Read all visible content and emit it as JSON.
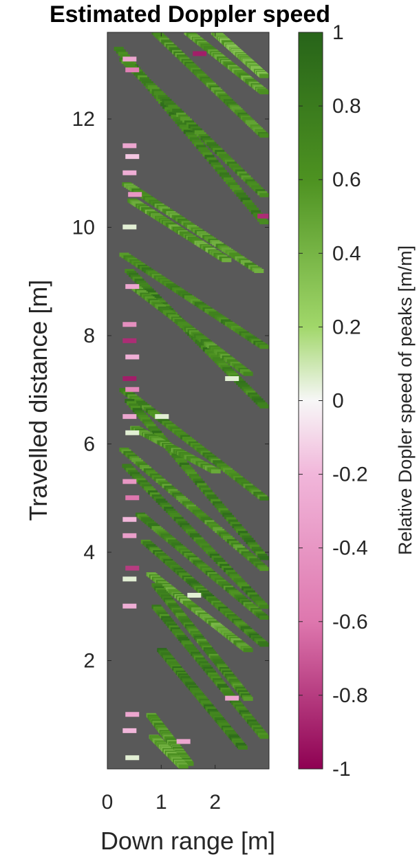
{
  "chart_data": {
    "type": "heatmap",
    "title": "Estimated Doppler speed",
    "xlabel": "Down range [m]",
    "ylabel": "Travelled distance [m]",
    "colorbar_label": "Relative Dopler speed of peaks [m/m]",
    "xlim": [
      0,
      3
    ],
    "ylim": [
      0,
      13.6
    ],
    "clim": [
      -1,
      1
    ],
    "x_ticks": [
      0,
      1,
      2
    ],
    "x_tick_labels": [
      "0",
      "1",
      "2"
    ],
    "y_ticks": [
      2,
      4,
      6,
      8,
      10,
      12
    ],
    "y_tick_labels": [
      "2",
      "4",
      "6",
      "8",
      "10",
      "12"
    ],
    "colorbar_ticks": [
      1,
      0.8,
      0.6,
      0.4,
      0.2,
      0,
      -0.2,
      -0.4,
      -0.6,
      -0.8,
      -1
    ],
    "colorbar_tick_labels": [
      "1",
      "0.8",
      "0.6",
      "0.4",
      "0.2",
      "0",
      "-0.2",
      "-0.4",
      "-0.6",
      "-0.8",
      "-1"
    ],
    "colormap": "PiYG",
    "background_color": "#595959",
    "grid": false,
    "streaks": [
      {
        "x0": 0.2,
        "y0": 13.3,
        "x1": 2.9,
        "y1": 10.1,
        "v": 0.75
      },
      {
        "x0": 0.3,
        "y0": 13.1,
        "x1": 2.9,
        "y1": 10.6,
        "v": 0.7
      },
      {
        "x0": 0.9,
        "y0": 13.6,
        "x1": 2.9,
        "y1": 11.7,
        "v": 0.65
      },
      {
        "x0": 1.5,
        "y0": 13.6,
        "x1": 2.9,
        "y1": 12.5,
        "v": 0.55
      },
      {
        "x0": 2.0,
        "y0": 13.6,
        "x1": 2.9,
        "y1": 12.8,
        "v": 0.45
      },
      {
        "x0": 0.35,
        "y0": 10.8,
        "x1": 2.8,
        "y1": 9.2,
        "v": 0.6
      },
      {
        "x0": 0.45,
        "y0": 10.5,
        "x1": 2.2,
        "y1": 9.4,
        "v": 0.55
      },
      {
        "x0": 0.3,
        "y0": 9.5,
        "x1": 2.9,
        "y1": 7.8,
        "v": 0.7
      },
      {
        "x0": 0.4,
        "y0": 9.2,
        "x1": 2.9,
        "y1": 6.7,
        "v": 0.75
      },
      {
        "x0": 0.5,
        "y0": 8.9,
        "x1": 2.6,
        "y1": 7.3,
        "v": 0.65
      },
      {
        "x0": 0.3,
        "y0": 7.0,
        "x1": 2.9,
        "y1": 5.0,
        "v": 0.7
      },
      {
        "x0": 0.4,
        "y0": 6.8,
        "x1": 2.9,
        "y1": 3.9,
        "v": 0.75
      },
      {
        "x0": 0.5,
        "y0": 6.3,
        "x1": 2.0,
        "y1": 5.5,
        "v": 0.6
      },
      {
        "x0": 0.3,
        "y0": 5.9,
        "x1": 2.9,
        "y1": 3.7,
        "v": 0.65
      },
      {
        "x0": 0.35,
        "y0": 5.6,
        "x1": 2.9,
        "y1": 3.0,
        "v": 0.75
      },
      {
        "x0": 0.6,
        "y0": 4.7,
        "x1": 2.9,
        "y1": 2.8,
        "v": 0.7
      },
      {
        "x0": 0.7,
        "y0": 4.2,
        "x1": 2.9,
        "y1": 2.3,
        "v": 0.75
      },
      {
        "x0": 0.8,
        "y0": 3.6,
        "x1": 2.6,
        "y1": 2.2,
        "v": 0.55
      },
      {
        "x0": 0.9,
        "y0": 3.4,
        "x1": 2.6,
        "y1": 1.3,
        "v": 0.7
      },
      {
        "x0": 0.9,
        "y0": 3.0,
        "x1": 2.9,
        "y1": 0.6,
        "v": 0.75
      },
      {
        "x0": 1.0,
        "y0": 2.2,
        "x1": 2.5,
        "y1": 0.4,
        "v": 0.8
      },
      {
        "x0": 0.8,
        "y0": 1.0,
        "x1": 1.5,
        "y1": 0.1,
        "v": 0.6
      },
      {
        "x0": 0.85,
        "y0": 0.6,
        "x1": 1.4,
        "y1": 0.05,
        "v": 0.5
      }
    ],
    "patches": [
      {
        "x": 0.4,
        "y": 13.1,
        "v": -0.3
      },
      {
        "x": 0.45,
        "y": 12.9,
        "v": -0.55
      },
      {
        "x": 0.4,
        "y": 11.5,
        "v": -0.3
      },
      {
        "x": 0.45,
        "y": 11.3,
        "v": -0.15
      },
      {
        "x": 0.4,
        "y": 11.0,
        "v": -0.25
      },
      {
        "x": 0.5,
        "y": 10.6,
        "v": -0.4
      },
      {
        "x": 0.4,
        "y": 10.0,
        "v": 0.05
      },
      {
        "x": 0.45,
        "y": 8.9,
        "v": -0.3
      },
      {
        "x": 0.4,
        "y": 8.2,
        "v": -0.45
      },
      {
        "x": 0.4,
        "y": 7.9,
        "v": -0.85
      },
      {
        "x": 0.45,
        "y": 7.6,
        "v": -0.25
      },
      {
        "x": 0.4,
        "y": 7.2,
        "v": -0.9
      },
      {
        "x": 0.45,
        "y": 7.0,
        "v": -0.5
      },
      {
        "x": 0.4,
        "y": 6.5,
        "v": -0.3
      },
      {
        "x": 0.45,
        "y": 6.2,
        "v": 0.05
      },
      {
        "x": 0.4,
        "y": 5.3,
        "v": -0.4
      },
      {
        "x": 0.45,
        "y": 5.0,
        "v": -0.6
      },
      {
        "x": 0.4,
        "y": 4.6,
        "v": -0.2
      },
      {
        "x": 0.4,
        "y": 4.3,
        "v": -0.35
      },
      {
        "x": 0.45,
        "y": 3.7,
        "v": -0.8
      },
      {
        "x": 0.4,
        "y": 3.5,
        "v": 0.05
      },
      {
        "x": 0.4,
        "y": 3.0,
        "v": -0.25
      },
      {
        "x": 0.45,
        "y": 1.0,
        "v": -0.3
      },
      {
        "x": 0.4,
        "y": 0.7,
        "v": -0.2
      },
      {
        "x": 0.45,
        "y": 0.2,
        "v": 0.05
      },
      {
        "x": 1.4,
        "y": 0.5,
        "v": -0.3
      },
      {
        "x": 1.7,
        "y": 13.2,
        "v": -0.9
      },
      {
        "x": 2.9,
        "y": 10.2,
        "v": -0.85
      },
      {
        "x": 2.3,
        "y": 1.3,
        "v": -0.3
      },
      {
        "x": 1.0,
        "y": 6.5,
        "v": 0.05
      },
      {
        "x": 1.6,
        "y": 3.2,
        "v": 0.05
      },
      {
        "x": 2.3,
        "y": 7.2,
        "v": 0.05
      }
    ]
  }
}
